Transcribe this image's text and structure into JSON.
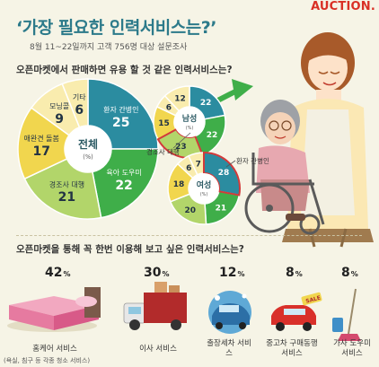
{
  "brand": "AUCTION.",
  "title": "‘가장 필요한 인력서비스는?’",
  "subtitle": "8월 11~22일까지 고객 756명 대상 설문조사",
  "question1": "오픈마켓에서 판매하면 유용 할 것 같은 인력서비스는?",
  "question2": "오픈마켓을 통해 꼭 한번 이용해 보고 싶은 인력서비스는?",
  "colors": {
    "teal": "#2b8ca0",
    "green": "#3fae49",
    "lightgreen": "#b2d56a",
    "yellow": "#f1d64e",
    "lightyellow": "#f9ecae",
    "red": "#d23a3a",
    "cream": "#f6f4e6"
  },
  "chart_data": [
    {
      "type": "pie",
      "center_label": "전체",
      "center_unit": "(%)",
      "categories": [
        "환자 간병인",
        "육아 도우미",
        "경조사 대행",
        "애완견 돌봄",
        "모닝콜",
        "기타"
      ],
      "values": [
        25,
        22,
        21,
        17,
        9,
        6
      ]
    },
    {
      "type": "pie",
      "center_label": "남성",
      "center_unit": "(%)",
      "values": [
        22,
        22,
        23,
        15,
        6,
        12
      ]
    },
    {
      "type": "pie",
      "center_label": "여성",
      "center_unit": "(%)",
      "values": [
        28,
        21,
        20,
        18,
        6,
        7
      ]
    },
    {
      "type": "bar",
      "categories": [
        "홈케어 서비스",
        "이사 서비스",
        "출장세차 서비스",
        "중고차 구매동행 서비스",
        "가사 도우미 서비스"
      ],
      "values": [
        42,
        30,
        12,
        8,
        8
      ],
      "unit": "%"
    }
  ],
  "callouts": {
    "funeral": "경조사 대행",
    "patient": "환자 간병인"
  },
  "items": [
    {
      "pct": "42",
      "unit": "%",
      "label": "홈케어 서비스",
      "sub": "(욕실, 침구 등 각종 청소 서비스)"
    },
    {
      "pct": "30",
      "unit": "%",
      "label": "이사 서비스"
    },
    {
      "pct": "12",
      "unit": "%",
      "label": "출장세차 서비스"
    },
    {
      "pct": "8",
      "unit": "%",
      "label": "중고차 구매동행 서비스"
    },
    {
      "pct": "8",
      "unit": "%",
      "label": "가사 도우미 서비스"
    }
  ],
  "sale_tag": "SALE"
}
